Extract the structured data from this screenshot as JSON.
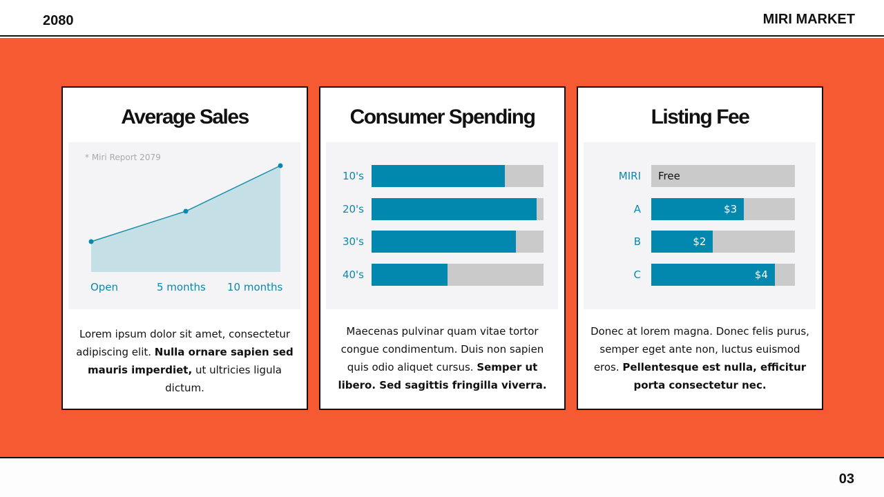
{
  "header": {
    "year": "2080",
    "brand": "MIRI MARKET"
  },
  "footer": {
    "page": "03"
  },
  "colors": {
    "accent": "#f55a33",
    "bar": "#0287ae",
    "track": "#cacaca",
    "area": "#c4dfe6"
  },
  "cards": [
    {
      "title": "Average Sales",
      "desc_plain": "Lorem ipsum dolor sit amet, consectetur adipiscing elit. ",
      "desc_bold": "Nulla ornare sapien sed mauris imperdiet,",
      "desc_tail": " ut ultricies ligula dictum."
    },
    {
      "title": "Consumer Spending",
      "desc_plain": "Maecenas pulvinar quam vitae tortor congue condimentum. Duis non sapien quis odio aliquet cursus. ",
      "desc_bold": "Semper ut libero. Sed sagittis fringilla viverra.",
      "desc_tail": ""
    },
    {
      "title": "Listing Fee",
      "desc_plain": "Donec at lorem magna. Donec felis purus, semper eget ante non, luctus euismod eros. ",
      "desc_bold": "Pellentesque est nulla, efficitur porta consectetur nec.",
      "desc_tail": ""
    }
  ],
  "chart_data": [
    {
      "type": "area",
      "note": "* Miri Report 2079",
      "categories": [
        "Open",
        "5 months",
        "10 months"
      ],
      "values": [
        1,
        2,
        3.5
      ],
      "ylim": [
        0,
        3.5
      ],
      "grid": false
    },
    {
      "type": "bar",
      "orientation": "horizontal",
      "categories": [
        "10's",
        "20's",
        "30's",
        "40's"
      ],
      "values": [
        77.5,
        96,
        84,
        44
      ],
      "ylim": [
        0,
        100
      ]
    },
    {
      "type": "bar",
      "orientation": "horizontal",
      "categories": [
        "MIRI",
        "A",
        "B",
        "C"
      ],
      "values": [
        0,
        3,
        2,
        4
      ],
      "labels": [
        "Free",
        "$3",
        "$2",
        "$4"
      ],
      "ylim": [
        0,
        4.65
      ]
    }
  ]
}
